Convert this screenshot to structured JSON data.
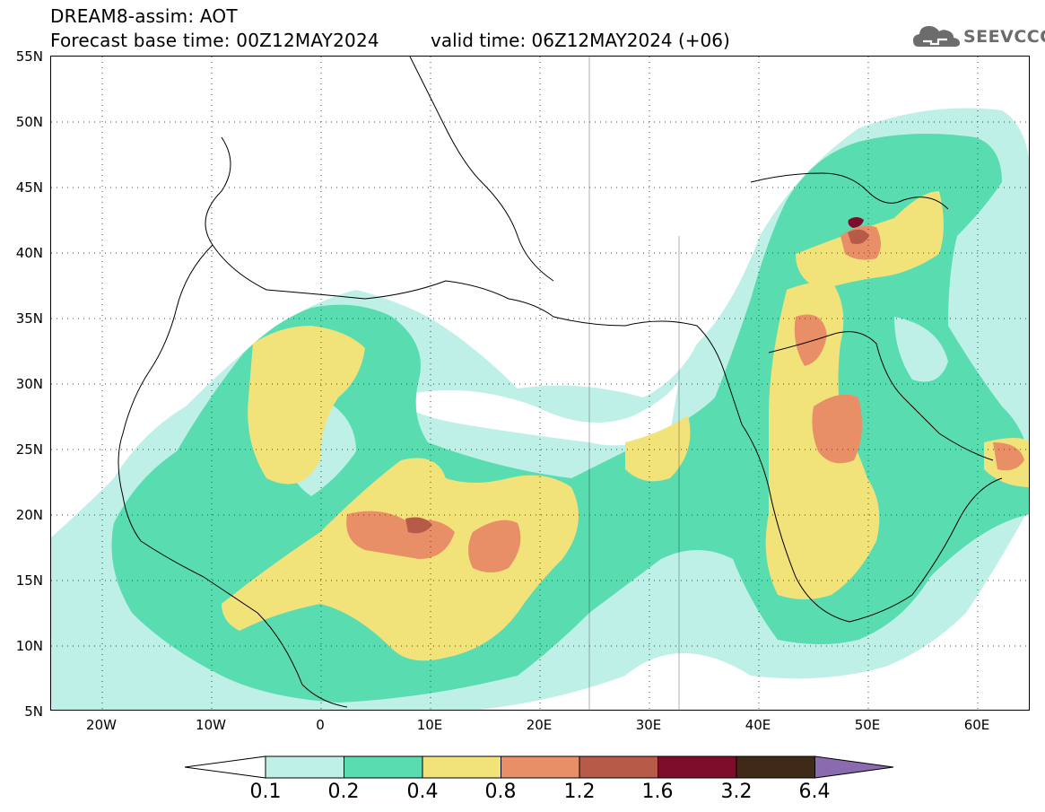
{
  "header": {
    "title": "DREAM8-assim: AOT",
    "base_time": "Forecast base time: 00Z12MAY2024",
    "valid_time": "valid time: 06Z12MAY2024 (+06)"
  },
  "logo": {
    "text": "SEEVCCC",
    "icon": "cloud-icon"
  },
  "map": {
    "lat_range": [
      5,
      55
    ],
    "lon_range": [
      -25,
      65
    ],
    "lat_labels": [
      "55N",
      "50N",
      "45N",
      "40N",
      "35N",
      "30N",
      "25N",
      "20N",
      "15N",
      "10N",
      "5N"
    ],
    "lon_labels": [
      "20W",
      "10W",
      "0",
      "10E",
      "20E",
      "30E",
      "40E",
      "50E",
      "60E"
    ],
    "grid": "dotted"
  },
  "colorbar": {
    "labels": [
      "0.1",
      "0.2",
      "0.4",
      "0.8",
      "1.2",
      "1.6",
      "3.2",
      "6.4"
    ],
    "colors": [
      "#bff0e8",
      "#58dcb0",
      "#f2e27a",
      "#e98f68",
      "#b85a48",
      "#7e0d2c",
      "#3e2a16"
    ],
    "extend_low_color": "#ffffff",
    "extend_high_color": "#8c6ab0"
  },
  "legend_colors": {
    "c01": "#bff0e8",
    "c02": "#58dcb0",
    "c04": "#f2e27a",
    "c08": "#e98f68",
    "c12": "#b85a48",
    "c16": "#7e0d2c"
  }
}
